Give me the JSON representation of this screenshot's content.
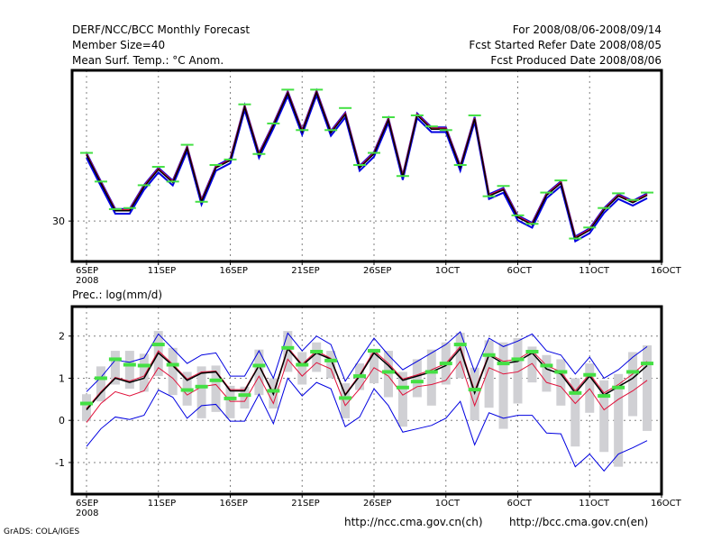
{
  "header": {
    "title": "DERF/NCC/BCC Monthly Forecast",
    "member_size": "Member Size=40",
    "variable": "Mean Surf. Temp.: °C Anom.",
    "period": "For 2008/08/06-2008/09/14",
    "started": "Fcst Started Refer Date 2008/08/05",
    "produced": "Fcst Produced Date 2008/08/06"
  },
  "footer": {
    "grads": "GrADS: COLA/IGES",
    "url_ch": "http://ncc.cma.gov.cn(ch)",
    "url_en": "http://bcc.cma.gov.cn(en)"
  },
  "colors": {
    "mean": "#000000",
    "spread": "#e0103a",
    "range": "#0000e0",
    "obs": "#44e044",
    "box": "#d0d0d4",
    "grid": "#808080"
  },
  "chart_data": [
    {
      "type": "line",
      "title": "Mean Surf. Temp.: °C Anom.",
      "xlabel": "",
      "ylabel": "",
      "x_ticks": [
        "6SEP",
        "11SEP",
        "16SEP",
        "21SEP",
        "26SEP",
        "1OCT",
        "6OCT",
        "11OCT",
        "16OCT"
      ],
      "x_year": "2008",
      "x_range_days": [
        0,
        40
      ],
      "y_ticks": [
        30
      ],
      "ylim": [
        28.9,
        34.1
      ],
      "grid": true,
      "series": [
        {
          "name": "mean",
          "values": [
            31.8,
            31.03,
            30.28,
            30.28,
            30.93,
            31.4,
            31.05,
            31.98,
            30.53,
            31.45,
            31.65,
            33.1,
            31.8,
            32.6,
            33.48,
            32.43,
            33.5,
            32.4,
            32.9,
            31.45,
            31.83,
            32.75,
            31.2,
            32.88,
            32.5,
            32.5,
            31.45,
            32.78,
            30.68,
            30.85,
            30.1,
            29.9,
            30.7,
            31.03,
            29.53,
            29.75,
            30.3,
            30.68,
            30.5,
            30.7
          ]
        },
        {
          "name": "obs",
          "values": [
            31.83,
            31.05,
            30.3,
            30.33,
            30.95,
            31.45,
            31.05,
            32.05,
            30.5,
            31.5,
            31.65,
            33.15,
            31.8,
            32.63,
            33.55,
            32.45,
            33.55,
            32.45,
            33.05,
            31.5,
            31.83,
            32.8,
            31.2,
            32.85,
            32.55,
            32.45,
            31.5,
            32.85,
            30.65,
            30.93,
            30.13,
            29.9,
            30.75,
            31.08,
            29.5,
            29.8,
            30.33,
            30.73,
            30.55,
            30.75
          ]
        }
      ]
    },
    {
      "type": "line",
      "title": "Prec.: log(mm/d)",
      "xlabel": "",
      "ylabel": "",
      "x_ticks": [
        "6SEP",
        "11SEP",
        "16SEP",
        "21SEP",
        "26SEP",
        "1OCT",
        "6OCT",
        "11OCT",
        "16OCT"
      ],
      "x_year": "2008",
      "x_range_days": [
        0,
        40
      ],
      "y_ticks": [
        -1,
        0,
        1,
        2
      ],
      "ylim": [
        -1.75,
        2.7
      ],
      "grid": true,
      "series": [
        {
          "name": "mean",
          "values": [
            0.25,
            0.65,
            1.0,
            0.9,
            1.0,
            1.6,
            1.3,
            0.95,
            1.12,
            1.15,
            0.7,
            0.7,
            1.3,
            0.62,
            1.7,
            1.3,
            1.6,
            1.45,
            0.6,
            1.05,
            1.6,
            1.3,
            0.95,
            1.05,
            1.15,
            1.3,
            1.7,
            0.65,
            1.55,
            1.35,
            1.4,
            1.6,
            1.22,
            1.1,
            0.65,
            1.05,
            0.6,
            0.8,
            1.0,
            1.3
          ]
        },
        {
          "name": "upper",
          "values": [
            0.28,
            0.68,
            1.02,
            0.93,
            1.05,
            1.65,
            1.33,
            0.98,
            1.15,
            1.17,
            0.73,
            0.73,
            1.32,
            0.65,
            1.73,
            1.33,
            1.65,
            1.47,
            0.62,
            1.08,
            1.65,
            1.35,
            0.98,
            1.08,
            1.2,
            1.35,
            1.75,
            0.7,
            1.58,
            1.4,
            1.45,
            1.65,
            1.3,
            1.15,
            0.7,
            1.1,
            0.65,
            0.85,
            1.1,
            1.4
          ]
        },
        {
          "name": "lower",
          "values": [
            -0.05,
            0.4,
            0.68,
            0.58,
            0.7,
            1.25,
            1.0,
            0.6,
            0.8,
            0.85,
            0.45,
            0.45,
            1.05,
            0.4,
            1.45,
            1.05,
            1.37,
            1.22,
            0.35,
            0.75,
            1.25,
            1.05,
            0.6,
            0.8,
            0.85,
            0.95,
            1.4,
            0.35,
            1.25,
            1.1,
            1.15,
            1.35,
            0.9,
            0.8,
            0.4,
            0.75,
            0.25,
            0.5,
            0.7,
            0.95
          ]
        },
        {
          "name": "max",
          "values": [
            0.68,
            1.02,
            1.43,
            1.38,
            1.48,
            2.05,
            1.7,
            1.35,
            1.55,
            1.6,
            1.05,
            1.05,
            1.65,
            1.0,
            2.07,
            1.65,
            2.0,
            1.8,
            0.93,
            1.45,
            1.95,
            1.55,
            1.2,
            1.4,
            1.6,
            1.8,
            2.1,
            1.15,
            1.95,
            1.75,
            1.88,
            2.05,
            1.65,
            1.55,
            1.1,
            1.5,
            1.0,
            1.2,
            1.5,
            1.75
          ]
        },
        {
          "name": "min",
          "values": [
            -0.62,
            -0.2,
            0.08,
            0.02,
            0.12,
            0.72,
            0.55,
            0.05,
            0.35,
            0.38,
            -0.02,
            -0.02,
            0.62,
            -0.08,
            1.0,
            0.58,
            0.9,
            0.75,
            -0.15,
            0.08,
            0.75,
            0.35,
            -0.28,
            -0.2,
            -0.12,
            0.05,
            0.45,
            -0.58,
            0.18,
            0.05,
            0.12,
            0.12,
            -0.3,
            -0.32,
            -1.1,
            -0.8,
            -1.2,
            -0.8,
            -0.65,
            -0.48
          ]
        },
        {
          "name": "obs",
          "values": [
            0.4,
            1.0,
            1.45,
            1.32,
            1.3,
            1.8,
            1.32,
            0.72,
            0.8,
            0.95,
            0.52,
            0.6,
            1.3,
            0.7,
            1.72,
            1.32,
            1.63,
            1.42,
            0.53,
            1.05,
            1.65,
            1.15,
            0.78,
            0.92,
            1.15,
            1.35,
            1.8,
            0.73,
            1.55,
            1.35,
            1.45,
            1.63,
            1.3,
            1.15,
            0.65,
            1.08,
            0.58,
            0.78,
            1.15,
            1.35
          ]
        },
        {
          "name": "box_top",
          "values": [
            0.62,
            1.28,
            1.65,
            1.65,
            1.58,
            2.12,
            1.72,
            1.15,
            1.28,
            1.3,
            0.82,
            0.8,
            1.68,
            1.0,
            2.12,
            1.62,
            1.85,
            1.65,
            0.88,
            1.35,
            1.7,
            1.65,
            1.15,
            1.45,
            1.68,
            1.85,
            2.08,
            1.25,
            1.9,
            1.85,
            1.95,
            1.75,
            1.55,
            1.45,
            1.0,
            1.35,
            0.95,
            1.1,
            1.62,
            1.78
          ]
        },
        {
          "name": "box_bottom",
          "values": [
            -0.02,
            0.45,
            0.85,
            0.75,
            0.68,
            1.05,
            0.6,
            0.35,
            0.05,
            0.2,
            0.05,
            0.28,
            0.6,
            0.28,
            1.15,
            0.85,
            1.15,
            1.0,
            0.05,
            0.72,
            0.88,
            0.55,
            -0.15,
            0.55,
            0.35,
            0.85,
            1.0,
            0.0,
            0.3,
            -0.2,
            0.4,
            0.9,
            0.68,
            0.35,
            -0.62,
            0.18,
            -0.75,
            -1.1,
            0.1,
            -0.25
          ]
        }
      ]
    }
  ]
}
